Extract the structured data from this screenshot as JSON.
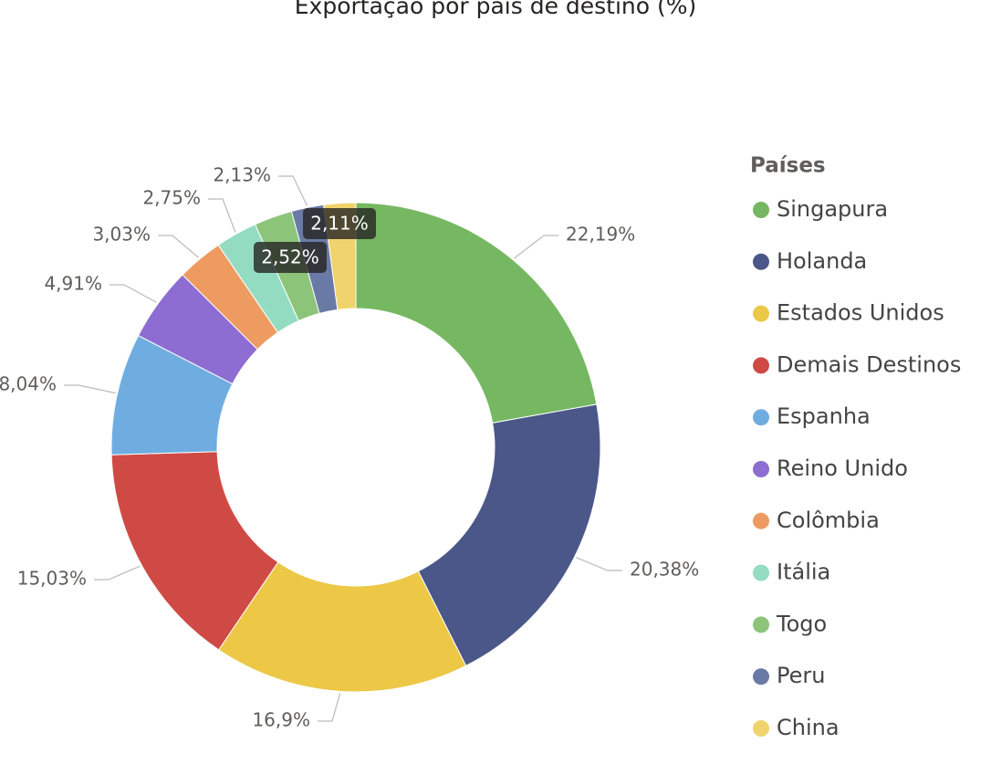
{
  "chart_data": {
    "type": "donut",
    "title": "Exportação por país de destino (%)",
    "legend_title": "Países",
    "legend": "right",
    "categories": [
      "Singapura",
      "Holanda",
      "Estados Unidos",
      "Demais Destinos",
      "Espanha",
      "Reino Unido",
      "Colômbia",
      "Itália",
      "Togo",
      "Peru",
      "China"
    ],
    "values": [
      22.19,
      20.38,
      16.9,
      15.03,
      8.04,
      4.91,
      3.03,
      2.75,
      2.52,
      2.13,
      2.11
    ],
    "value_labels": [
      "22,19%",
      "20,38%",
      "16,9%",
      "15,03%",
      "8,04%",
      "4,91%",
      "3,03%",
      "2,75%",
      "2,52%",
      "2,13%",
      "2,11%"
    ],
    "colors": [
      "#76b862",
      "#4a5788",
      "#ecc846",
      "#cf4a45",
      "#6fade0",
      "#8d6dd1",
      "#ee9b62",
      "#93dcc1",
      "#8cc47a",
      "#6a7aa6",
      "#f0d36c"
    ]
  }
}
